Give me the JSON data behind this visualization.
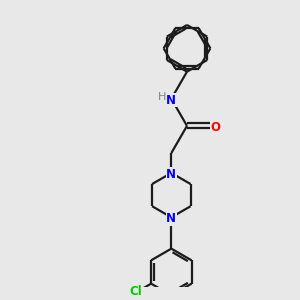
{
  "bg_color": "#e8e8e8",
  "bond_color": "#1c1c1c",
  "N_color": "#0000ff",
  "O_color": "#ff0000",
  "Cl_color": "#00cc00",
  "H_color": "#808080",
  "line_width": 1.6,
  "font_size_atom": 8.5,
  "fig_size": [
    3.0,
    3.0
  ],
  "dpi": 100,
  "xlim": [
    0,
    10
  ],
  "ylim": [
    0,
    10
  ]
}
